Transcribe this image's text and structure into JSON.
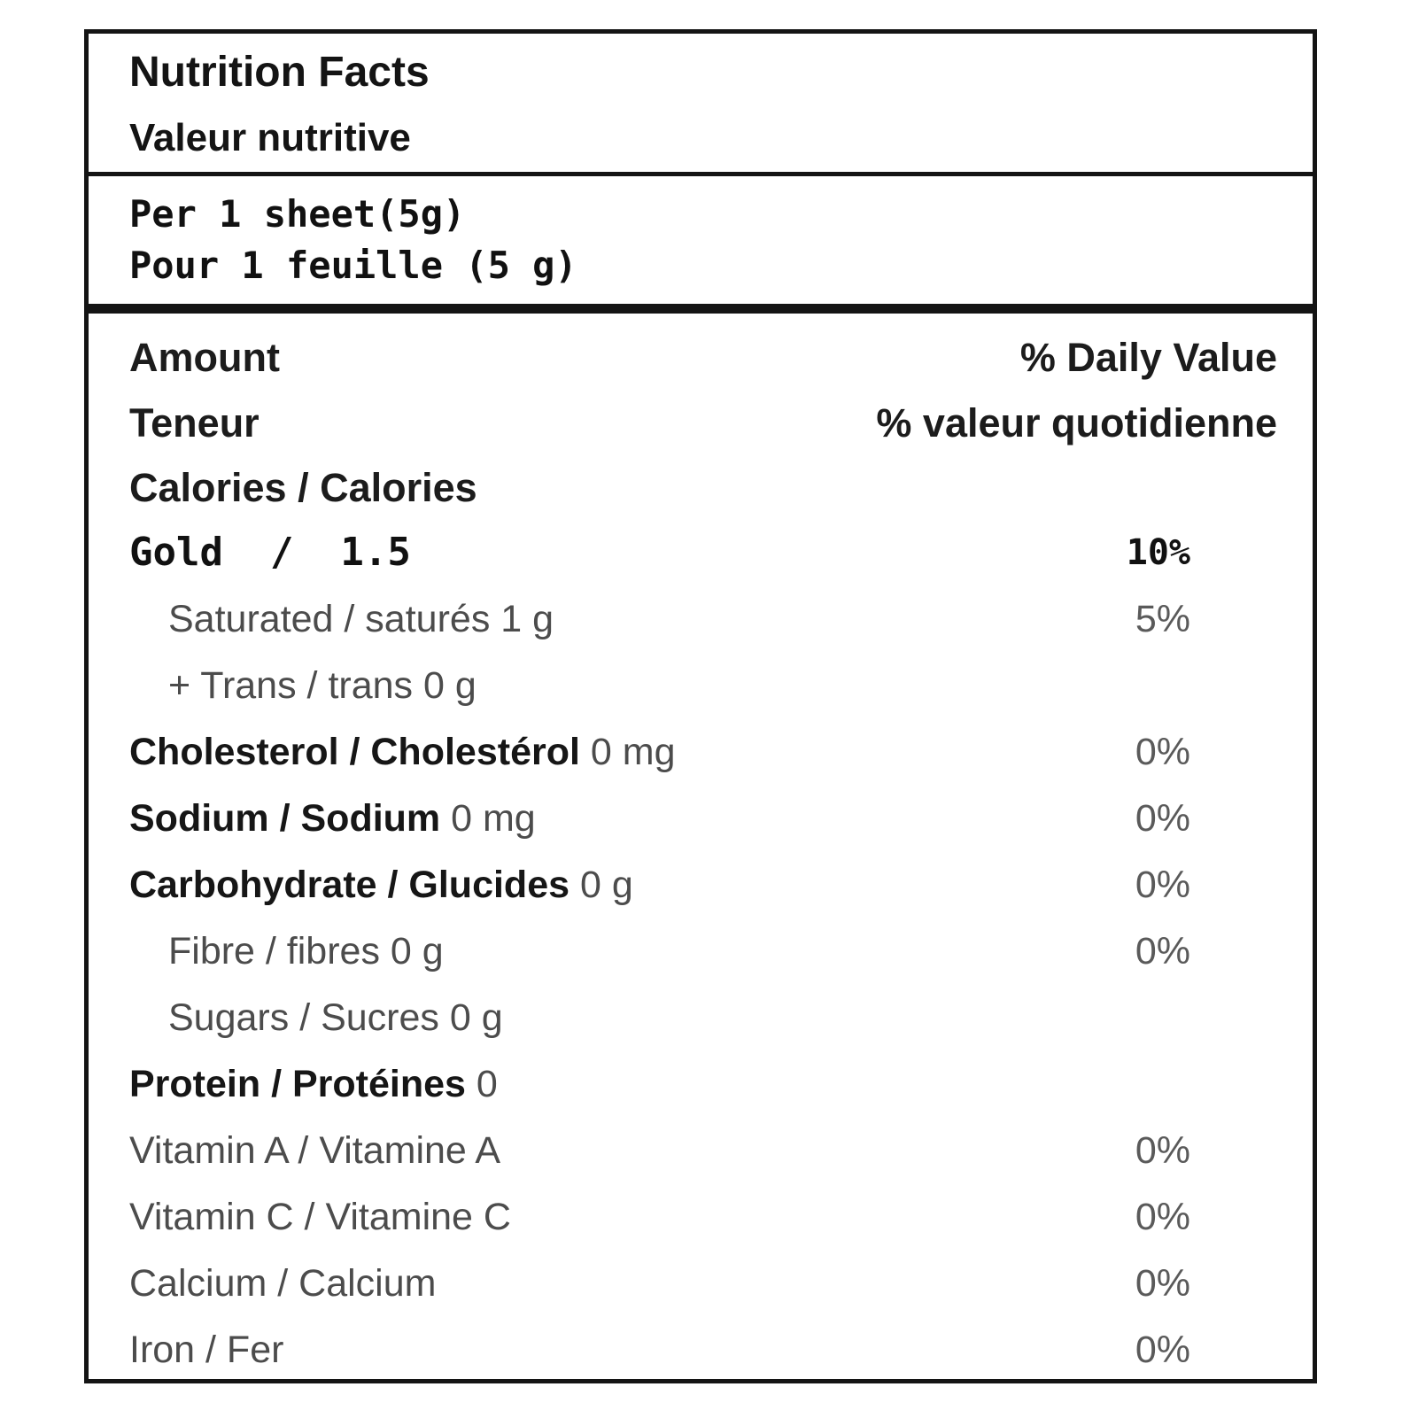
{
  "label": {
    "title_en": "Nutrition Facts",
    "title_fr": "Valeur nutritive",
    "serving_en": "Per 1 sheet(5g)",
    "serving_fr": "Pour 1 feuille (5 g)",
    "header": {
      "amount_en": "Amount",
      "amount_fr": "Teneur",
      "daily_value_en": "% Daily Value",
      "daily_value_fr": "% valeur quotidienne"
    },
    "calories_row": {
      "label": "Calories / Calories"
    },
    "fat_row": {
      "label": "Gold  /  1.5",
      "percent": "10%"
    },
    "rows": [
      {
        "bold": "",
        "rest": "Saturated / saturés 1 g",
        "percent": "5%",
        "indent": 1
      },
      {
        "bold": "",
        "rest": "+ Trans / trans 0 g",
        "percent": "",
        "indent": 1
      },
      {
        "bold": "Cholesterol / Cholestérol",
        "rest": " 0 mg",
        "percent": "0%",
        "indent": 0
      },
      {
        "bold": "Sodium / Sodium",
        "rest": " 0 mg",
        "percent": "0%",
        "indent": 0
      },
      {
        "bold": "Carbohydrate / Glucides",
        "rest": " 0 g",
        "percent": "0%",
        "indent": 0
      },
      {
        "bold": "",
        "rest": "Fibre / fibres 0 g",
        "percent": "0%",
        "indent": 1
      },
      {
        "bold": "",
        "rest": "Sugars / Sucres 0 g",
        "percent": "",
        "indent": 1
      },
      {
        "bold": "Protein / Protéines",
        "rest": " 0",
        "percent": "",
        "indent": 0
      },
      {
        "bold": "",
        "rest": "Vitamin A / Vitamine A",
        "percent": "0%",
        "indent": 0
      },
      {
        "bold": "",
        "rest": "Vitamin C / Vitamine C",
        "percent": "0%",
        "indent": 0
      },
      {
        "bold": "",
        "rest": "Calcium / Calcium",
        "percent": "0%",
        "indent": 0
      },
      {
        "bold": "",
        "rest": "Iron / Fer",
        "percent": "0%",
        "indent": 0
      }
    ]
  }
}
